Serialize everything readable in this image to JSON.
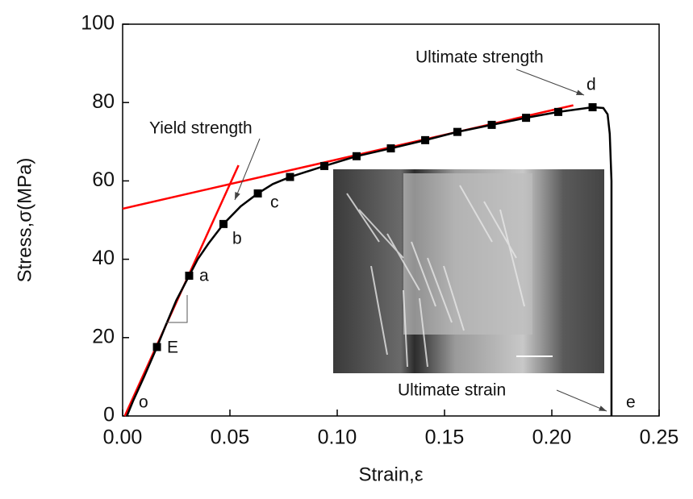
{
  "chart_data": {
    "type": "line",
    "xlabel": "Strain,ε",
    "ylabel": "Stress,σ(MPa)",
    "xlim": [
      0,
      0.25
    ],
    "ylim": [
      0,
      100
    ],
    "xticks": [
      {
        "value": 0,
        "label": "0.00"
      },
      {
        "value": 0.05,
        "label": "0.05"
      },
      {
        "value": 0.1,
        "label": "0.10"
      },
      {
        "value": 0.15,
        "label": "0.15"
      },
      {
        "value": 0.2,
        "label": "0.20"
      },
      {
        "value": 0.25,
        "label": "0.25"
      }
    ],
    "yticks": [
      0,
      20,
      40,
      60,
      80,
      100
    ],
    "series": [
      {
        "color": "#000000",
        "marker": "none",
        "x": [
          0.002,
          0.005,
          0.01,
          0.016,
          0.02,
          0.025,
          0.031,
          0.035,
          0.04,
          0.047,
          0.055,
          0.063,
          0.07,
          0.078,
          0.094,
          0.109,
          0.125,
          0.141,
          0.156,
          0.172,
          0.188,
          0.203,
          0.219,
          0.224,
          0.226,
          0.227,
          0.2278,
          0.2278
        ],
        "values": [
          0,
          4,
          10,
          17.6,
          23,
          29.5,
          35.8,
          40,
          44,
          49,
          53.5,
          56.8,
          59.2,
          61,
          63.8,
          66.3,
          68.3,
          70.4,
          72.5,
          74.3,
          76.1,
          77.6,
          78.8,
          78.6,
          77,
          72,
          60,
          0
        ]
      },
      {
        "color": "#000000",
        "marker": "square",
        "x": [
          0.016,
          0.031,
          0.047,
          0.063,
          0.078,
          0.094,
          0.109,
          0.125,
          0.141,
          0.156,
          0.172,
          0.188,
          0.203,
          0.219
        ],
        "values": [
          17.6,
          35.8,
          49,
          56.8,
          61,
          63.8,
          66.3,
          68.3,
          70.4,
          72.5,
          74.3,
          76.1,
          77.6,
          78.8
        ]
      },
      {
        "color": "#ff0000",
        "marker": "none",
        "x": [
          0.001,
          0.054
        ],
        "values": [
          0,
          64
        ]
      },
      {
        "color": "#ff0000",
        "marker": "none",
        "x": [
          0,
          0.21
        ],
        "values": [
          52.9,
          79.3
        ]
      }
    ],
    "annotations": [
      "Yield strength",
      "Ultimate strength",
      "Ultimate strain",
      "o",
      "E",
      "a",
      "b",
      "c",
      "d",
      "e"
    ]
  }
}
